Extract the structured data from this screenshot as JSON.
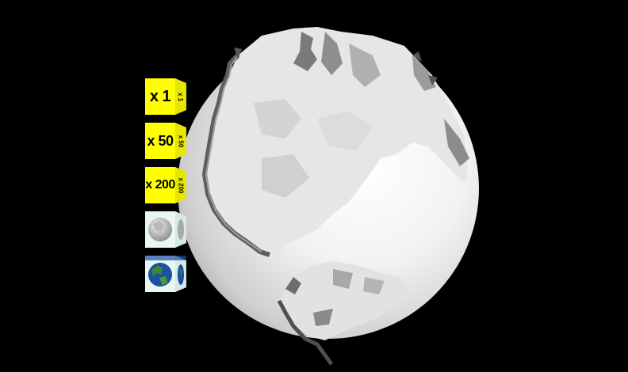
{
  "toolbar": {
    "buttons": [
      {
        "id": "scale-x1",
        "label": "x 1",
        "side_label": "x 1"
      },
      {
        "id": "scale-x50",
        "label": "x 50",
        "side_label": "x 50"
      },
      {
        "id": "scale-x200",
        "label": "x 200",
        "side_label": "x 200"
      },
      {
        "id": "texture-relief",
        "label": "",
        "side_label": ""
      },
      {
        "id": "texture-earth",
        "label": "",
        "side_label": ""
      }
    ]
  },
  "colors": {
    "background": "#000000",
    "button_face": "#ffff00",
    "globe_highlight": "#ffffff",
    "globe_shadow": "#8a8a8a",
    "ocean": "#1f4fa3",
    "land": "#3c8a2e"
  }
}
